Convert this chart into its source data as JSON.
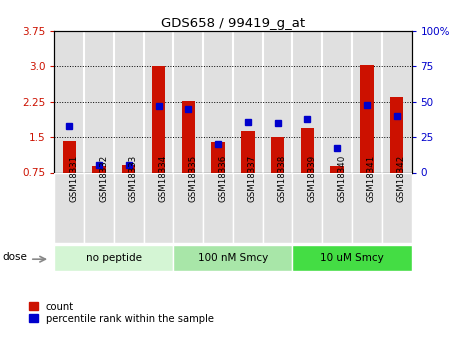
{
  "title": "GDS658 / 99419_g_at",
  "samples": [
    "GSM18331",
    "GSM18332",
    "GSM18333",
    "GSM18334",
    "GSM18335",
    "GSM18336",
    "GSM18337",
    "GSM18338",
    "GSM18339",
    "GSM18340",
    "GSM18341",
    "GSM18342"
  ],
  "red_bars": [
    1.42,
    0.88,
    0.9,
    3.0,
    2.27,
    1.4,
    1.62,
    1.5,
    1.7,
    0.88,
    3.02,
    2.35
  ],
  "blue_pct": [
    33,
    5,
    5,
    47,
    45,
    20,
    36,
    35,
    38,
    17,
    48,
    40
  ],
  "ylim_left": [
    0.75,
    3.75
  ],
  "ylim_right": [
    0,
    100
  ],
  "yticks_left": [
    0.75,
    1.5,
    2.25,
    3.0,
    3.75
  ],
  "yticks_right": [
    0,
    25,
    50,
    75,
    100
  ],
  "group_labels": [
    "no peptide",
    "100 nM Smcy",
    "10 uM Smcy"
  ],
  "group_starts": [
    0,
    4,
    8
  ],
  "group_ends": [
    4,
    8,
    12
  ],
  "group_colors": [
    "#d4f5d4",
    "#a8e6a8",
    "#44dd44"
  ],
  "bar_color": "#cc1100",
  "dot_color": "#0000cc",
  "bar_width": 0.45,
  "cell_bg": "#e0e0e0",
  "fig_bg": "#ffffff"
}
